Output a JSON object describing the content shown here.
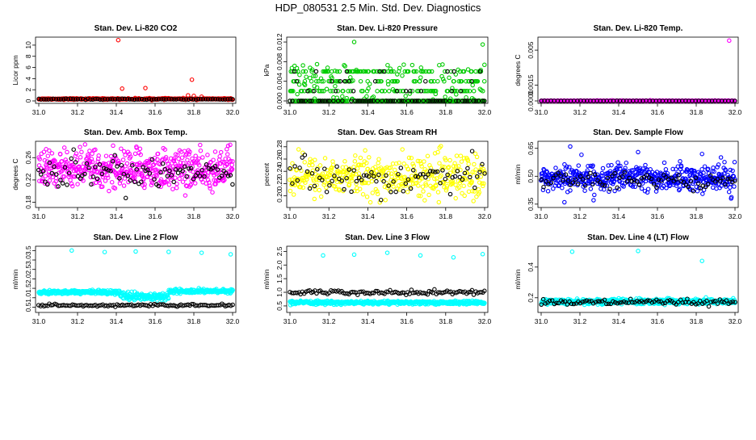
{
  "page_title": "HDP_080531  2.5 Min. Std. Dev. Diagnostics",
  "colors": {
    "red": "#ff0000",
    "green": "#00cc00",
    "magenta": "#ff00ff",
    "yellow": "#ffff00",
    "blue": "#0000ff",
    "cyan": "#00ffff",
    "black": "#000000"
  },
  "chart_data": [
    {
      "type": "scatter",
      "title": "Stan. Dev. Li-820 CO2",
      "xlabel": "",
      "ylabel": "Licor ppm",
      "xlim": [
        31.0,
        32.0
      ],
      "ylim": [
        0,
        11
      ],
      "x_ticks": [
        "31.0",
        "31.2",
        "31.4",
        "31.6",
        "31.8",
        "32.0"
      ],
      "y_ticks": [
        "0",
        "2",
        "4",
        "6",
        "8",
        "10"
      ],
      "series": [
        {
          "name": "all",
          "color": "red",
          "baseline": 0.35,
          "noise": 0.06,
          "n": 400,
          "outliers": [
            [
              31.41,
              10.9
            ],
            [
              31.43,
              2.2
            ],
            [
              31.55,
              2.3
            ],
            [
              31.79,
              3.8
            ],
            [
              31.77,
              1.0
            ],
            [
              31.8,
              0.9
            ],
            [
              31.84,
              0.75
            ]
          ]
        },
        {
          "name": "subset",
          "color": "black",
          "baseline": 0.3,
          "noise": 0.04,
          "n": 80
        }
      ]
    },
    {
      "type": "scatter",
      "title": "Stan. Dev. Li-820 Pressure",
      "xlabel": "",
      "ylabel": "kPa",
      "xlim": [
        31.0,
        32.0
      ],
      "ylim": [
        0,
        0.0125
      ],
      "x_ticks": [
        "31.0",
        "31.2",
        "31.4",
        "31.6",
        "31.8",
        "32.0"
      ],
      "y_ticks": [
        "0.000",
        "0.004",
        "0.008",
        "0.012"
      ],
      "levels": [
        0.0,
        0.002,
        0.004,
        0.006
      ],
      "series": [
        {
          "name": "all",
          "color": "green",
          "n": 500,
          "outliers": [
            [
              31.33,
              0.012
            ],
            [
              31.99,
              0.0115
            ],
            [
              31.01,
              0.0067
            ],
            [
              31.98,
              0.0063
            ]
          ]
        },
        {
          "name": "subset",
          "color": "black",
          "n": 90
        }
      ]
    },
    {
      "type": "scatter",
      "title": "Stan. Dev. Li-820 Temp.",
      "xlabel": "",
      "ylabel": "degrees C",
      "xlim": [
        31.0,
        32.0
      ],
      "ylim": [
        0,
        0.0058
      ],
      "x_ticks": [
        "31.0",
        "31.2",
        "31.4",
        "31.6",
        "31.8",
        "32.0"
      ],
      "y_ticks": [
        "0.0000",
        "0.0015",
        "0.005"
      ],
      "series": [
        {
          "name": "all",
          "color": "magenta",
          "baseline": 0.0,
          "noise": 2e-05,
          "n": 400,
          "outliers": [
            [
              31.97,
              0.0057
            ]
          ]
        },
        {
          "name": "subset",
          "color": "black",
          "baseline": 0.0,
          "noise": 1e-05,
          "n": 60
        }
      ]
    },
    {
      "type": "scatter",
      "title": "Stan. Dev. Amb. Box Temp.",
      "xlabel": "",
      "ylabel": "degrees C",
      "xlim": [
        31.0,
        32.0
      ],
      "ylim": [
        0.175,
        0.285
      ],
      "x_ticks": [
        "31.0",
        "31.2",
        "31.4",
        "31.6",
        "31.8",
        "32.0"
      ],
      "y_ticks": [
        "0.18",
        "0.22",
        "0.26"
      ],
      "series": [
        {
          "name": "all",
          "color": "magenta",
          "baseline": 0.24,
          "noise": 0.018,
          "n": 500
        },
        {
          "name": "subset",
          "color": "black",
          "baseline": 0.235,
          "noise": 0.014,
          "n": 90
        }
      ]
    },
    {
      "type": "scatter",
      "title": "Stan. Dev. Gas Stream RH",
      "xlabel": "",
      "ylabel": "percent",
      "xlim": [
        31.0,
        32.0
      ],
      "ylim": [
        0.185,
        0.285
      ],
      "x_ticks": [
        "31.0",
        "31.2",
        "31.4",
        "31.6",
        "31.8",
        "32.0"
      ],
      "y_ticks": [
        "0.20",
        "0.22",
        "0.24",
        "0.26",
        "0.28"
      ],
      "series": [
        {
          "name": "all",
          "color": "yellow",
          "baseline": 0.232,
          "noise": 0.016,
          "n": 400
        },
        {
          "name": "subset",
          "color": "black",
          "baseline": 0.23,
          "noise": 0.013,
          "n": 80
        }
      ]
    },
    {
      "type": "scatter",
      "title": "Stan. Dev. Sample Flow",
      "xlabel": "",
      "ylabel": "ml/min",
      "xlim": [
        31.0,
        32.0
      ],
      "ylim": [
        0.345,
        0.675
      ],
      "x_ticks": [
        "31.0",
        "31.2",
        "31.4",
        "31.6",
        "31.8",
        "32.0"
      ],
      "y_ticks": [
        "0.35",
        "0.50",
        "0.65"
      ],
      "series": [
        {
          "name": "all",
          "color": "blue",
          "baseline": 0.49,
          "noise": 0.035,
          "n": 500,
          "outliers": [
            [
              31.15,
              0.66
            ],
            [
              31.5,
              0.63
            ],
            [
              31.83,
              0.62
            ],
            [
              31.12,
              0.36
            ],
            [
              31.98,
              0.38
            ]
          ]
        },
        {
          "name": "subset",
          "color": "black",
          "baseline": 0.48,
          "noise": 0.025,
          "n": 80
        }
      ]
    },
    {
      "type": "scatter",
      "title": "Stan. Dev. Line 2 Flow",
      "xlabel": "",
      "ylabel": "ml/min",
      "xlim": [
        31.0,
        32.0
      ],
      "ylim": [
        0.35,
        3.6
      ],
      "x_ticks": [
        "31.0",
        "31.2",
        "31.4",
        "31.6",
        "31.8",
        "32.0"
      ],
      "y_ticks": [
        "0.5",
        "1.0",
        "1.5",
        "2.0",
        "2.5",
        "3.0",
        "3.5"
      ],
      "series": [
        {
          "name": "all",
          "color": "cyan",
          "baseline": 1.3,
          "noise": 0.05,
          "n": 500,
          "outliers": [
            [
              31.17,
              3.5
            ],
            [
              31.34,
              3.42
            ],
            [
              31.5,
              3.45
            ],
            [
              31.67,
              3.43
            ],
            [
              31.84,
              3.38
            ],
            [
              31.99,
              3.3
            ]
          ]
        },
        {
          "name": "subset",
          "color": "black",
          "baseline": 0.6,
          "noise": 0.03,
          "n": 110
        }
      ]
    },
    {
      "type": "scatter",
      "title": "Stan. Dev. Line 3 Flow",
      "xlabel": "",
      "ylabel": "ml/min",
      "xlim": [
        31.0,
        32.0
      ],
      "ylim": [
        0.35,
        2.6
      ],
      "x_ticks": [
        "31.0",
        "31.2",
        "31.4",
        "31.6",
        "31.8",
        "32.0"
      ],
      "y_ticks": [
        "0.5",
        "1.0",
        "1.5",
        "2.0",
        "2.5"
      ],
      "series": [
        {
          "name": "all",
          "color": "cyan",
          "baseline": 0.62,
          "noise": 0.03,
          "n": 500,
          "outliers": [
            [
              31.17,
              2.35
            ],
            [
              31.33,
              2.38
            ],
            [
              31.5,
              2.45
            ],
            [
              31.67,
              2.35
            ],
            [
              31.84,
              2.28
            ],
            [
              31.99,
              2.4
            ]
          ]
        },
        {
          "name": "subset",
          "color": "black",
          "baseline": 1.0,
          "noise": 0.04,
          "n": 110
        }
      ]
    },
    {
      "type": "scatter",
      "title": "Stan. Dev. Line 4 (LT) Flow",
      "xlabel": "",
      "ylabel": "ml/min",
      "xlim": [
        31.0,
        32.0
      ],
      "ylim": [
        0.12,
        0.52
      ],
      "x_ticks": [
        "31.0",
        "31.2",
        "31.4",
        "31.6",
        "31.8",
        "32.0"
      ],
      "y_ticks": [
        "0.2",
        "0.4"
      ],
      "series": [
        {
          "name": "all",
          "color": "cyan",
          "baseline": 0.175,
          "noise": 0.009,
          "n": 500,
          "outliers": [
            [
              31.16,
              0.5
            ],
            [
              31.5,
              0.505
            ],
            [
              31.83,
              0.44
            ]
          ]
        },
        {
          "name": "subset",
          "color": "black",
          "baseline": 0.17,
          "noise": 0.009,
          "n": 90
        }
      ]
    }
  ]
}
